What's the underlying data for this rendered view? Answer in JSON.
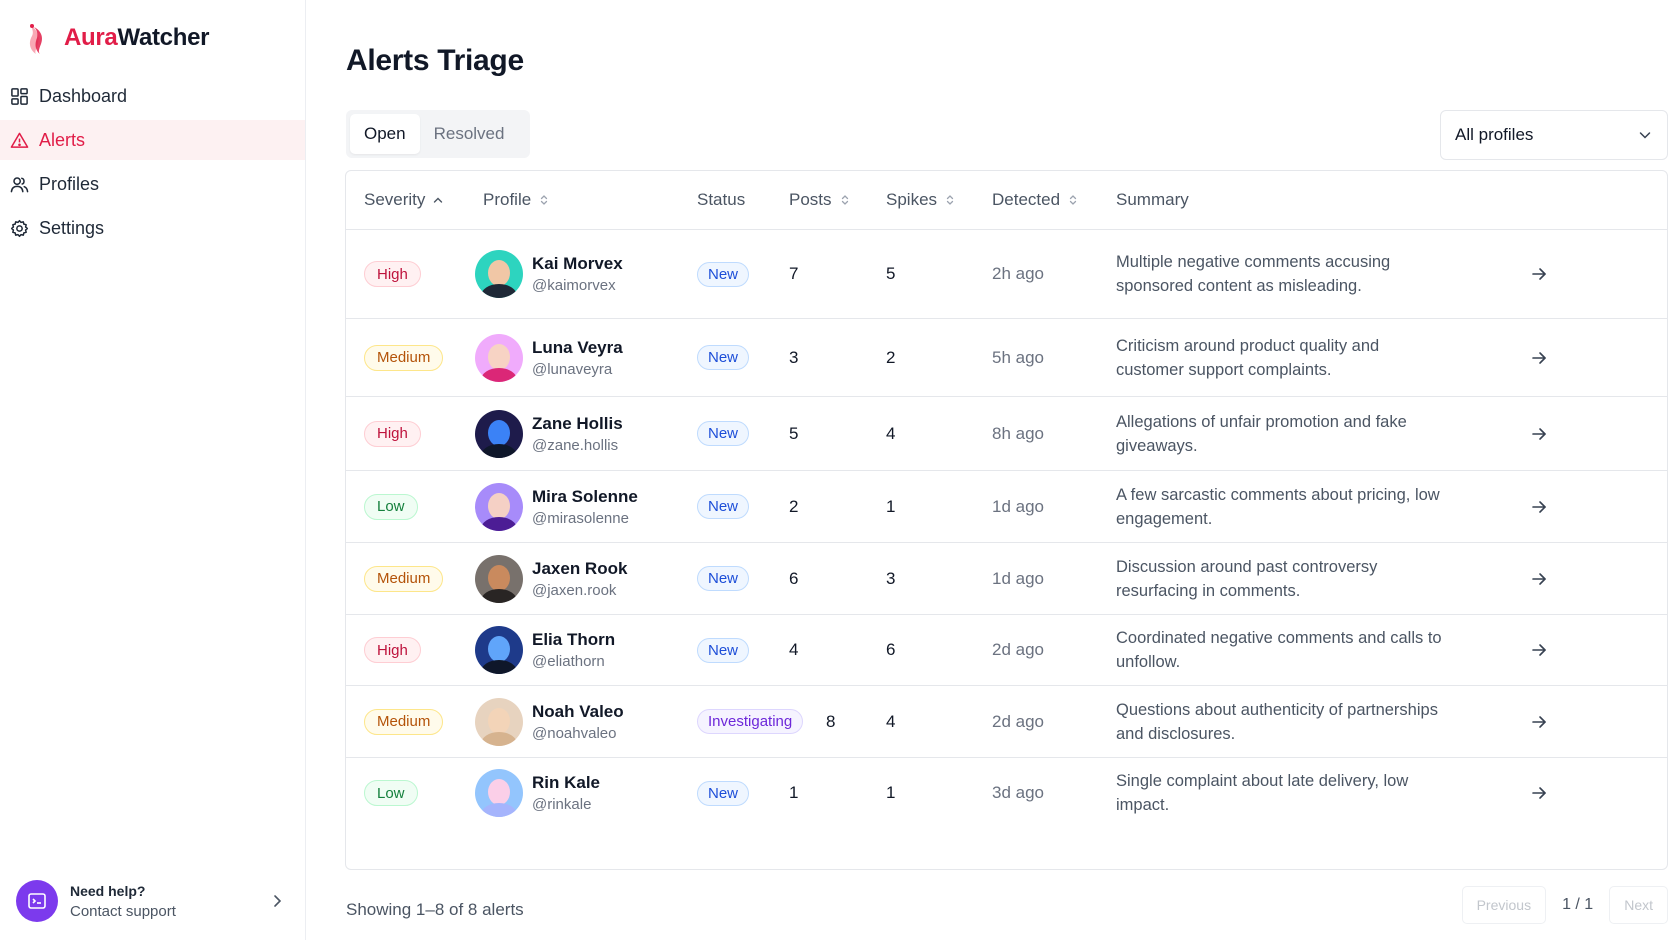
{
  "brand": {
    "name_part1": "Aura",
    "name_part2": "Watcher",
    "accent": "#e11d48"
  },
  "nav": {
    "items": [
      {
        "label": "Dashboard",
        "icon": "dashboard-grid-icon"
      },
      {
        "label": "Alerts",
        "icon": "alert-triangle-icon",
        "active": true
      },
      {
        "label": "Profiles",
        "icon": "users-icon"
      },
      {
        "label": "Settings",
        "icon": "gear-icon"
      }
    ]
  },
  "help": {
    "title": "Need help?",
    "subtitle": "Contact support"
  },
  "page": {
    "title": "Alerts Triage"
  },
  "tabs": {
    "open": "Open",
    "resolved": "Resolved",
    "active": "Open"
  },
  "filter": {
    "value": "All profiles"
  },
  "table": {
    "headers": {
      "severity": "Severity",
      "profile": "Profile",
      "status": "Status",
      "posts": "Posts",
      "spikes": "Spikes",
      "detected": "Detected",
      "summary": "Summary"
    },
    "rows": [
      {
        "severity": "High",
        "name": "Kai Morvex",
        "handle": "@kaimorvex",
        "status": "New",
        "posts": "7",
        "spikes": "5",
        "detected": "2h ago",
        "summary": "Multiple negative comments accusing sponsored content as misleading."
      },
      {
        "severity": "Medium",
        "name": "Luna Veyra",
        "handle": "@lunaveyra",
        "status": "New",
        "posts": "3",
        "spikes": "2",
        "detected": "5h ago",
        "summary": "Criticism around product quality and customer support complaints."
      },
      {
        "severity": "High",
        "name": "Zane Hollis",
        "handle": "@zane.hollis",
        "status": "New",
        "posts": "5",
        "spikes": "4",
        "detected": "8h ago",
        "summary": "Allegations of unfair promotion and fake giveaways."
      },
      {
        "severity": "Low",
        "name": "Mira Solenne",
        "handle": "@mirasolenne",
        "status": "New",
        "posts": "2",
        "spikes": "1",
        "detected": "1d ago",
        "summary": "A few sarcastic comments about pricing, low engagement."
      },
      {
        "severity": "Medium",
        "name": "Jaxen Rook",
        "handle": "@jaxen.rook",
        "status": "New",
        "posts": "6",
        "spikes": "3",
        "detected": "1d ago",
        "summary": "Discussion around past controversy resurfacing in comments."
      },
      {
        "severity": "High",
        "name": "Elia Thorn",
        "handle": "@eliathorn",
        "status": "New",
        "posts": "4",
        "spikes": "6",
        "detected": "2d ago",
        "summary": "Coordinated negative comments and calls to unfollow."
      },
      {
        "severity": "Medium",
        "name": "Noah Valeo",
        "handle": "@noahvaleo",
        "status": "Investigating",
        "posts": "8",
        "spikes": "4",
        "detected": "2d ago",
        "summary": "Questions about authenticity of partnerships and disclosures."
      },
      {
        "severity": "Low",
        "name": "Rin Kale",
        "handle": "@rinkale",
        "status": "New",
        "posts": "1",
        "spikes": "1",
        "detected": "3d ago",
        "summary": "Single complaint about late delivery, low impact."
      }
    ]
  },
  "footer": {
    "showing": "Showing 1–8 of 8 alerts",
    "previous": "Previous",
    "page_info": "1 / 1",
    "next": "Next"
  }
}
